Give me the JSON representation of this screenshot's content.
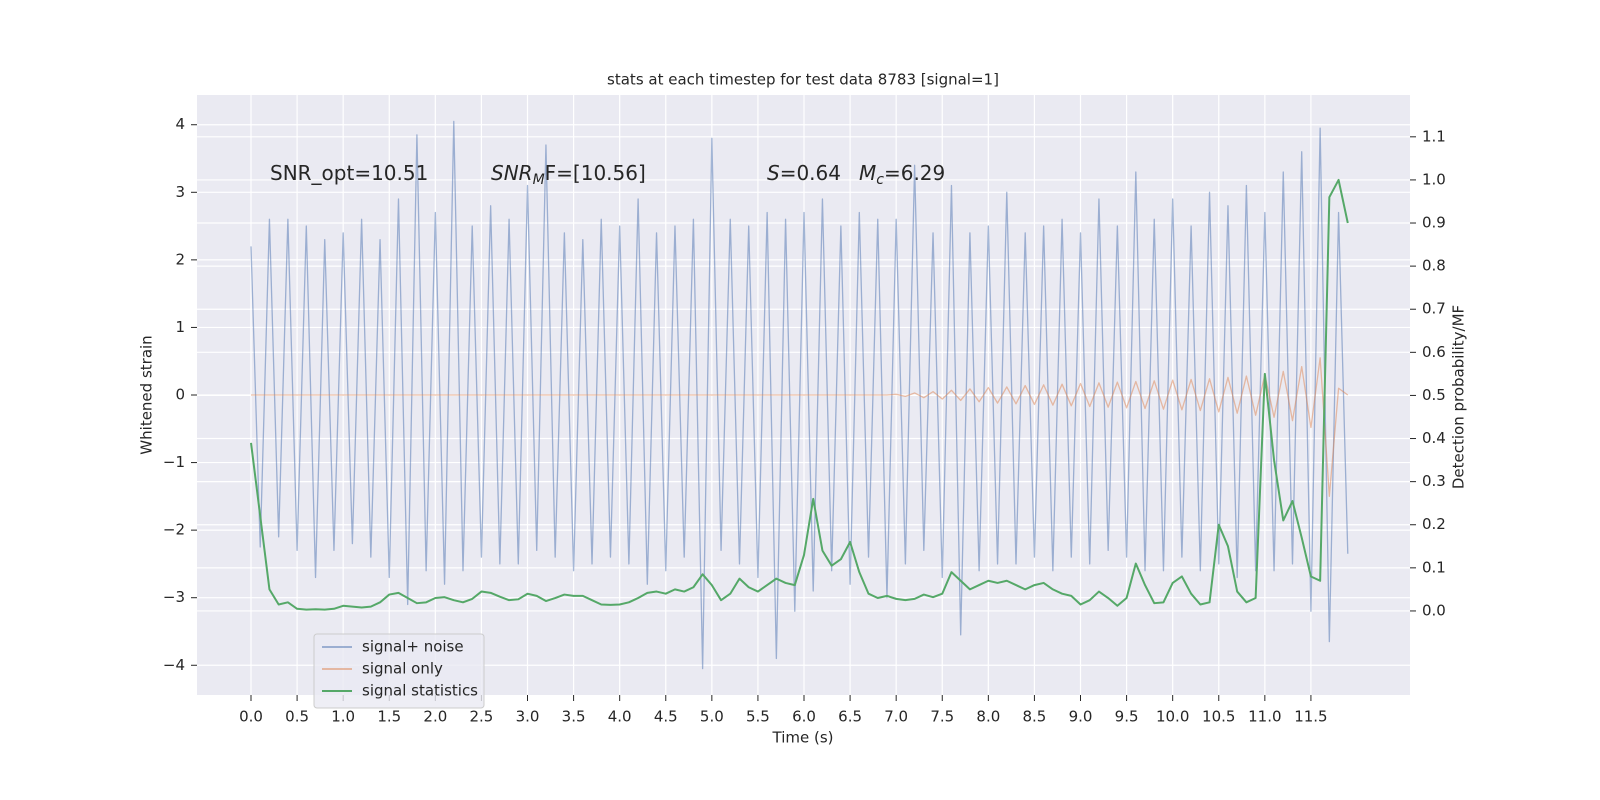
{
  "chart_data": {
    "type": "line",
    "title": "stats at each timestep for test data 8783 [signal=1]",
    "xlabel": "Time (s)",
    "ylabel": "Whitened strain",
    "y2label": "Detection probability/MF",
    "xlim": [
      -0.586,
      12.575
    ],
    "ylim": [
      -4.44,
      4.44
    ],
    "y2lim": [
      -0.195,
      1.197
    ],
    "xticks": [
      {
        "value": 0,
        "label": "0.0"
      },
      0.5,
      {
        "value": 1,
        "label": "1.0"
      },
      1.5,
      {
        "value": 2,
        "label": "2.0"
      },
      2.5,
      {
        "value": 3,
        "label": "3.0"
      },
      3.5,
      {
        "value": 4,
        "label": "4.0"
      },
      4.5,
      {
        "value": 5,
        "label": "5.0"
      },
      5.5,
      {
        "value": 6,
        "label": "6.0"
      },
      6.5,
      {
        "value": 7,
        "label": "7.0"
      },
      7.5,
      {
        "value": 8,
        "label": "8.0"
      },
      8.5,
      {
        "value": 9,
        "label": "9.0"
      },
      9.5,
      {
        "value": 10,
        "label": "10.0"
      },
      10.5,
      {
        "value": 11,
        "label": "11.0"
      },
      11.5
    ],
    "yticks": [
      {
        "value": -4,
        "label": "−4"
      },
      {
        "value": -3,
        "label": "−3"
      },
      {
        "value": -2,
        "label": "−2"
      },
      {
        "value": -1,
        "label": "−1"
      },
      0,
      1,
      2,
      3,
      4
    ],
    "y2ticks": [
      {
        "value": 0,
        "label": "0.0"
      },
      0.1,
      0.2,
      0.3,
      0.4,
      0.5,
      0.6,
      0.7,
      0.8,
      0.9,
      {
        "value": 1,
        "label": "1.0"
      },
      1.1
    ],
    "grid": true,
    "legend": "lower left",
    "annotations": [
      [
        {
          "text": "SNR_opt=10.51",
          "style": "normal"
        }
      ],
      [
        {
          "text": "SNR",
          "style": "italic"
        },
        {
          "text": "M",
          "style": "italic-sub"
        },
        {
          "text": "F=[10.56]",
          "style": "normal"
        }
      ],
      [
        {
          "text": "S",
          "style": "italic"
        },
        {
          "text": "=0.64",
          "style": "normal"
        }
      ],
      [
        {
          "text": "M",
          "style": "italic"
        },
        {
          "text": "c",
          "style": "italic-sub"
        },
        {
          "text": "=6.29",
          "style": "normal"
        }
      ]
    ],
    "x": [
      0.0,
      0.1,
      0.2,
      0.3,
      0.4,
      0.5,
      0.6,
      0.7,
      0.8,
      0.9,
      1.0,
      1.1,
      1.2,
      1.3,
      1.4,
      1.5,
      1.6,
      1.7,
      1.8,
      1.9,
      2.0,
      2.1,
      2.2,
      2.3,
      2.4,
      2.5,
      2.6,
      2.7,
      2.8,
      2.9,
      3.0,
      3.1,
      3.2,
      3.3,
      3.4,
      3.5,
      3.6,
      3.7,
      3.8,
      3.9,
      4.0,
      4.1,
      4.2,
      4.3,
      4.4,
      4.5,
      4.6,
      4.7,
      4.8,
      4.9,
      5.0,
      5.1,
      5.2,
      5.3,
      5.4,
      5.5,
      5.6,
      5.7,
      5.8,
      5.9,
      6.0,
      6.1,
      6.2,
      6.3,
      6.4,
      6.5,
      6.6,
      6.7,
      6.8,
      6.9,
      7.0,
      7.1,
      7.2,
      7.3,
      7.4,
      7.5,
      7.6,
      7.7,
      7.8,
      7.9,
      8.0,
      8.1,
      8.2,
      8.3,
      8.4,
      8.5,
      8.6,
      8.7,
      8.8,
      8.9,
      9.0,
      9.1,
      9.2,
      9.3,
      9.4,
      9.5,
      9.6,
      9.7,
      9.8,
      9.9,
      10.0,
      10.1,
      10.2,
      10.3,
      10.4,
      10.5,
      10.6,
      10.7,
      10.8,
      10.9,
      11.0,
      11.1,
      11.2,
      11.3,
      11.4,
      11.5,
      11.6,
      11.7,
      11.8,
      11.9
    ],
    "series": [
      {
        "name": "signal+ noise",
        "color": "#4c72b0",
        "alpha": 0.5,
        "values": [
          2.2,
          -2.25,
          2.6,
          -2.1,
          2.6,
          -2.3,
          2.5,
          -2.7,
          2.3,
          -2.3,
          2.4,
          -2.2,
          2.6,
          -2.4,
          2.3,
          -2.7,
          2.9,
          -3.1,
          3.85,
          -2.6,
          2.7,
          -2.8,
          4.05,
          -2.6,
          2.5,
          -2.4,
          2.8,
          -2.5,
          2.6,
          -2.5,
          3.1,
          -2.3,
          3.7,
          -2.4,
          2.4,
          -2.6,
          2.3,
          -2.5,
          2.6,
          -2.4,
          2.5,
          -2.5,
          2.9,
          -2.8,
          2.4,
          -2.6,
          2.5,
          -2.4,
          2.6,
          -4.05,
          3.8,
          -2.3,
          2.6,
          -2.5,
          2.5,
          -2.7,
          2.7,
          -3.9,
          2.6,
          -3.2,
          2.7,
          -2.9,
          2.9,
          -2.6,
          2.5,
          -2.8,
          2.7,
          -2.4,
          2.6,
          -3.0,
          2.6,
          -2.5,
          3.4,
          -2.3,
          2.4,
          -2.7,
          3.1,
          -3.55,
          2.4,
          -2.6,
          2.5,
          -2.5,
          3.0,
          -2.5,
          2.4,
          -2.4,
          2.5,
          -2.6,
          2.6,
          -2.4,
          2.4,
          -2.5,
          2.9,
          -2.3,
          2.5,
          -2.4,
          3.3,
          -2.6,
          2.6,
          -2.6,
          2.9,
          -2.4,
          2.5,
          -2.6,
          3.0,
          -2.5,
          2.8,
          -2.7,
          3.1,
          -2.6,
          2.7,
          -2.6,
          3.3,
          -2.5,
          3.6,
          -3.2,
          3.95,
          -3.65,
          2.7,
          -2.35
        ]
      },
      {
        "name": "signal only",
        "color": "#dd8452",
        "alpha": 0.5,
        "values": [
          0,
          0,
          0,
          0,
          0,
          0,
          0,
          0,
          0,
          0,
          0,
          0,
          0,
          0,
          0,
          0,
          0,
          0,
          0,
          0,
          0,
          0,
          0,
          0,
          0,
          0,
          0,
          0,
          0,
          0,
          0,
          0,
          0,
          0,
          0,
          0,
          0,
          0,
          0,
          0,
          0,
          0,
          0,
          0,
          0,
          0,
          0,
          0,
          0,
          0,
          0,
          0,
          0,
          0,
          0,
          0,
          0,
          0,
          0,
          0,
          0,
          0,
          0,
          0,
          0,
          0,
          0,
          0,
          0,
          0,
          0.01,
          -0.02,
          0.03,
          -0.04,
          0.05,
          -0.06,
          0.07,
          -0.08,
          0.09,
          -0.1,
          0.11,
          -0.12,
          0.12,
          -0.13,
          0.14,
          -0.14,
          0.15,
          -0.15,
          0.16,
          -0.16,
          0.17,
          -0.17,
          0.18,
          -0.18,
          0.19,
          -0.19,
          0.2,
          -0.2,
          0.21,
          -0.21,
          0.22,
          -0.22,
          0.23,
          -0.23,
          0.24,
          -0.25,
          0.26,
          -0.27,
          0.28,
          -0.3,
          0.3,
          -0.33,
          0.35,
          -0.38,
          0.42,
          -0.48,
          0.55,
          -1.5,
          0.1,
          0.0
        ]
      },
      {
        "name": "signal statistics",
        "color": "#55a868",
        "alpha": 1,
        "axis": "y2",
        "values": [
          0.39,
          0.22,
          0.05,
          0.015,
          0.02,
          0.005,
          0.003,
          0.004,
          0.003,
          0.005,
          0.012,
          0.01,
          0.008,
          0.01,
          0.02,
          0.038,
          0.042,
          0.03,
          0.018,
          0.02,
          0.03,
          0.032,
          0.025,
          0.02,
          0.028,
          0.045,
          0.042,
          0.033,
          0.025,
          0.027,
          0.04,
          0.035,
          0.023,
          0.03,
          0.038,
          0.035,
          0.035,
          0.025,
          0.015,
          0.014,
          0.015,
          0.02,
          0.03,
          0.042,
          0.045,
          0.04,
          0.05,
          0.045,
          0.055,
          0.085,
          0.06,
          0.025,
          0.04,
          0.075,
          0.055,
          0.045,
          0.06,
          0.075,
          0.065,
          0.06,
          0.13,
          0.26,
          0.14,
          0.105,
          0.12,
          0.16,
          0.09,
          0.04,
          0.03,
          0.035,
          0.028,
          0.025,
          0.028,
          0.038,
          0.032,
          0.04,
          0.09,
          0.07,
          0.05,
          0.06,
          0.07,
          0.065,
          0.07,
          0.06,
          0.05,
          0.06,
          0.065,
          0.05,
          0.04,
          0.035,
          0.015,
          0.025,
          0.045,
          0.03,
          0.012,
          0.03,
          0.11,
          0.06,
          0.018,
          0.02,
          0.065,
          0.08,
          0.04,
          0.015,
          0.02,
          0.2,
          0.15,
          0.045,
          0.02,
          0.03,
          0.55,
          0.35,
          0.21,
          0.255,
          0.17,
          0.08,
          0.07,
          0.96,
          1.0,
          0.9
        ]
      }
    ]
  }
}
